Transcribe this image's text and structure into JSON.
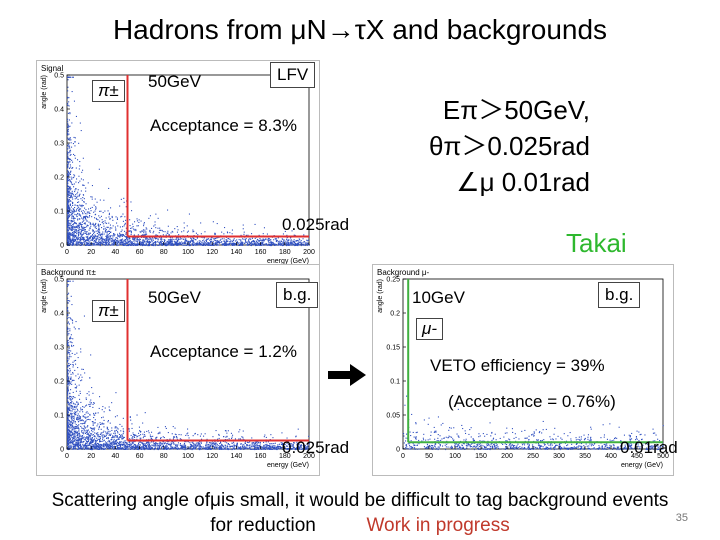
{
  "title": "Hadrons from μN→τX and backgrounds",
  "criteria": {
    "line1": "Eπ＞50GeV,",
    "line2": "θπ＞0.025rad",
    "line3": "∠μ 0.01rad"
  },
  "author": "Takai",
  "footer": {
    "line1": "Scattering angle ofμis small, it would be difficult to tag background events",
    "line2_prefix": "for reduction",
    "line2_highlight": "Work in progress"
  },
  "page_number": "35",
  "arrow_icon": "right-arrow-icon",
  "colors": {
    "points": "#3050c0",
    "cut_red": "#e03030",
    "cut_green": "#40b040",
    "author": "#2eb82e",
    "wip": "#c0392b"
  },
  "chart_data": [
    {
      "type": "scatter",
      "title": "Signal",
      "particle_label": "π±",
      "tag": "LFV",
      "energy_cut_label": "50GeV",
      "angle_cut_label": "0.025rad",
      "acceptance_label": "Acceptance = 8.3%",
      "xlabel": "energy (GeV)",
      "ylabel": "angle (rad)",
      "xlim": [
        0,
        200
      ],
      "ylim": [
        0,
        0.5
      ],
      "xticks": [
        "0",
        "20",
        "40",
        "60",
        "80",
        "100",
        "120",
        "140",
        "160",
        "180",
        "200"
      ],
      "yticks": [
        "0",
        "0.1",
        "0.2",
        "0.3",
        "0.4",
        "0.5"
      ],
      "xtick_values": [
        0,
        20,
        40,
        60,
        80,
        100,
        120,
        140,
        160,
        180,
        200
      ],
      "ytick_values": [
        0,
        0.1,
        0.2,
        0.3,
        0.4,
        0.5
      ],
      "cuts": {
        "energy": 50,
        "angle": 0.025
      },
      "density": "high",
      "grid": false
    },
    {
      "type": "scatter",
      "title": "Background π±",
      "particle_label": "π±",
      "tag": "b.g.",
      "energy_cut_label": "50GeV",
      "angle_cut_label": "0.025rad",
      "acceptance_label": "Acceptance = 1.2%",
      "xlabel": "energy (GeV)",
      "ylabel": "angle (rad)",
      "xlim": [
        0,
        200
      ],
      "ylim": [
        0,
        0.5
      ],
      "xticks": [
        "0",
        "20",
        "40",
        "60",
        "80",
        "100",
        "120",
        "140",
        "160",
        "180",
        "200"
      ],
      "yticks": [
        "0",
        "0.1",
        "0.2",
        "0.3",
        "0.4",
        "0.5"
      ],
      "xtick_values": [
        0,
        20,
        40,
        60,
        80,
        100,
        120,
        140,
        160,
        180,
        200
      ],
      "ytick_values": [
        0,
        0.1,
        0.2,
        0.3,
        0.4,
        0.5
      ],
      "cuts": {
        "energy": 50,
        "angle": 0.025
      },
      "density": "high",
      "grid": false
    },
    {
      "type": "scatter",
      "title": "Background μ-",
      "particle_label": "μ-",
      "tag": "b.g.",
      "energy_cut_label": "10GeV",
      "angle_cut_label": "0.01rad",
      "veto_label": "VETO efficiency = 39%",
      "acceptance_label": "(Acceptance = 0.76%)",
      "xlabel": "energy (GeV)",
      "ylabel": "angle (rad)",
      "xlim": [
        0,
        500
      ],
      "ylim": [
        0,
        0.25
      ],
      "xticks": [
        "0",
        "50",
        "100",
        "150",
        "200",
        "250",
        "300",
        "350",
        "400",
        "450",
        "500"
      ],
      "yticks": [
        "0",
        "0.05",
        "0.1",
        "0.15",
        "0.2",
        "0.25"
      ],
      "xtick_values": [
        0,
        50,
        100,
        150,
        200,
        250,
        300,
        350,
        400,
        450,
        500
      ],
      "ytick_values": [
        0,
        0.05,
        0.1,
        0.15,
        0.2,
        0.25
      ],
      "cuts": {
        "energy": 10,
        "angle": 0.01
      },
      "density": "low",
      "grid": false
    }
  ]
}
